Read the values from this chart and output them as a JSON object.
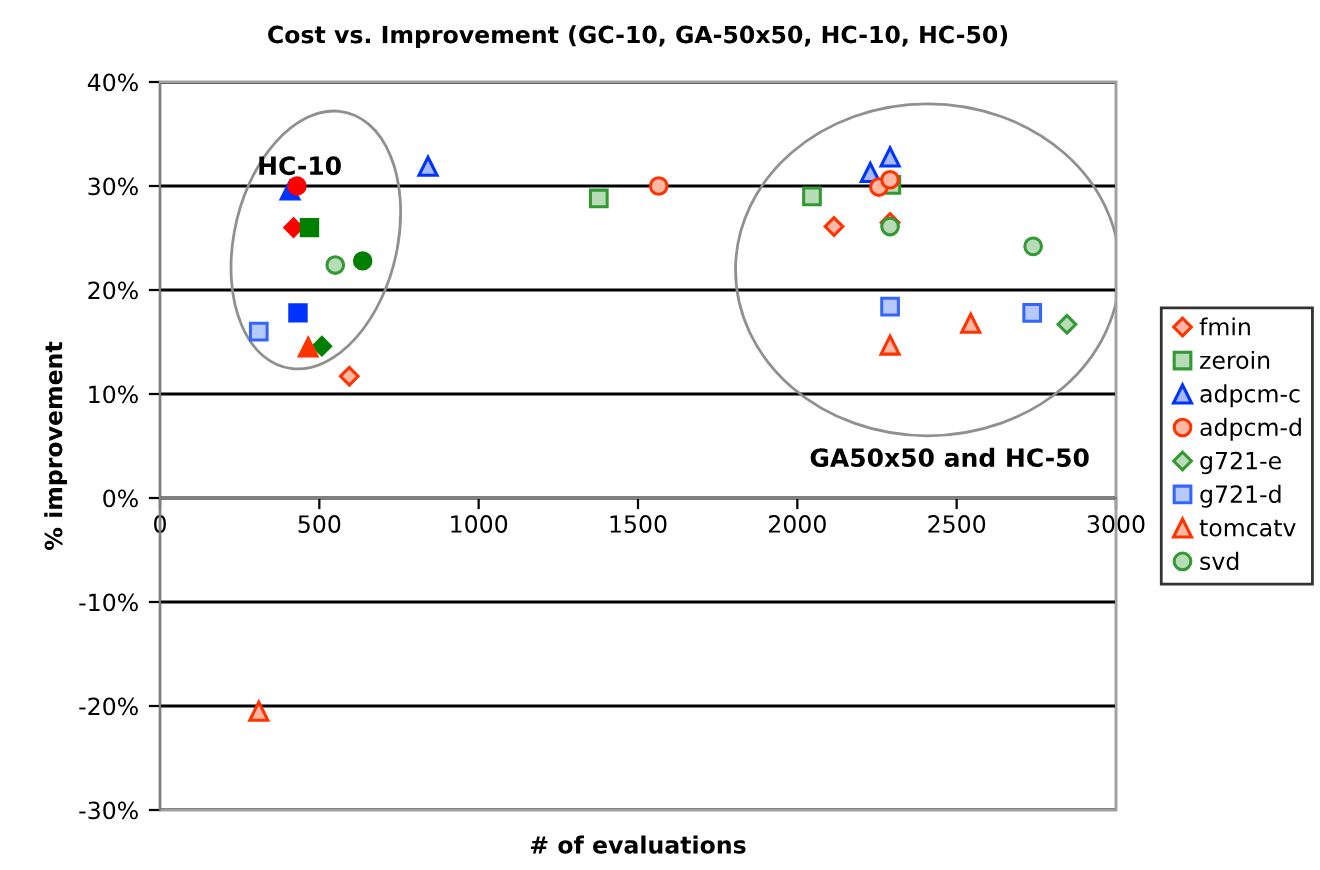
{
  "chart_data": {
    "type": "scatter",
    "title": "Cost vs. Improvement (GC-10, GA-50x50, HC-10, HC-50)",
    "xlabel": "# of evaluations",
    "ylabel": "% improvement",
    "xlim": [
      0,
      3000
    ],
    "xticks": [
      0,
      500,
      1000,
      1500,
      2000,
      2500,
      3000
    ],
    "ylim": [
      -30,
      40
    ],
    "yticks": [
      {
        "value": -30,
        "label": "-30%"
      },
      {
        "value": -20,
        "label": "-20%"
      },
      {
        "value": -10,
        "label": "-10%"
      },
      {
        "value": 0,
        "label": "0%"
      },
      {
        "value": 10,
        "label": "10%"
      },
      {
        "value": 20,
        "label": "20%"
      },
      {
        "value": 30,
        "label": "30%"
      },
      {
        "value": 40,
        "label": "40%"
      }
    ],
    "grid": "y",
    "legend": "right",
    "annotations": [
      "HC-10",
      "GA50x50 and HC-50"
    ],
    "series": [
      {
        "name": "fmin",
        "color": "#ff3300",
        "marker": "diamond",
        "x": [
          594,
          2115,
          2291
        ],
        "values": [
          11.7,
          26.1,
          26.5
        ]
      },
      {
        "name": "zeroin",
        "color": "#339933",
        "marker": "square",
        "x": [
          1377,
          2046,
          2295
        ],
        "values": [
          28.8,
          29.0,
          30.1
        ]
      },
      {
        "name": "adpcm-c",
        "color": "#0033ff",
        "marker": "triangle",
        "x": [
          841,
          2229,
          2291
        ],
        "values": [
          31.9,
          31.3,
          32.8
        ]
      },
      {
        "name": "adpcm-d",
        "color": "#ff3300",
        "marker": "circle",
        "x": [
          1565,
          2256,
          2291
        ],
        "values": [
          30.0,
          29.9,
          30.6
        ]
      },
      {
        "name": "g721-e",
        "color": "#339933",
        "marker": "diamond",
        "x": [
          2846
        ],
        "values": [
          16.7
        ]
      },
      {
        "name": "g721-d",
        "color": "#3366ff",
        "marker": "square",
        "x": [
          310,
          2291,
          2737
        ],
        "values": [
          16.0,
          18.4,
          17.8
        ]
      },
      {
        "name": "tomcatv",
        "color": "#ff3300",
        "marker": "triangle",
        "x": [
          310,
          2544,
          2291
        ],
        "values": [
          -20.5,
          16.8,
          14.7
        ]
      },
      {
        "name": "svd",
        "color": "#339933",
        "marker": "circle",
        "x": [
          550,
          2291,
          2740
        ],
        "values": [
          22.4,
          26.1,
          24.2
        ]
      },
      {
        "color": "#ff0000",
        "marker": "diamond",
        "x": [
          419
        ],
        "values": [
          26.0
        ]
      },
      {
        "color": "#007f00",
        "marker": "square",
        "x": [
          469
        ],
        "values": [
          26.0
        ]
      },
      {
        "color": "#0033ff",
        "marker": "triangle",
        "x": [
          408
        ],
        "values": [
          29.6
        ]
      },
      {
        "color": "#ff0000",
        "marker": "circle",
        "x": [
          430
        ],
        "values": [
          30.0
        ]
      },
      {
        "color": "#007f00",
        "marker": "diamond",
        "x": [
          508
        ],
        "values": [
          14.6
        ]
      },
      {
        "color": "#0033ff",
        "marker": "square",
        "x": [
          433
        ],
        "values": [
          17.8
        ]
      },
      {
        "color": "#ff3300",
        "marker": "triangle",
        "x": [
          465
        ],
        "values": [
          14.5
        ]
      },
      {
        "color": "#007f00",
        "marker": "circle",
        "x": [
          636
        ],
        "values": [
          22.8
        ]
      }
    ]
  }
}
